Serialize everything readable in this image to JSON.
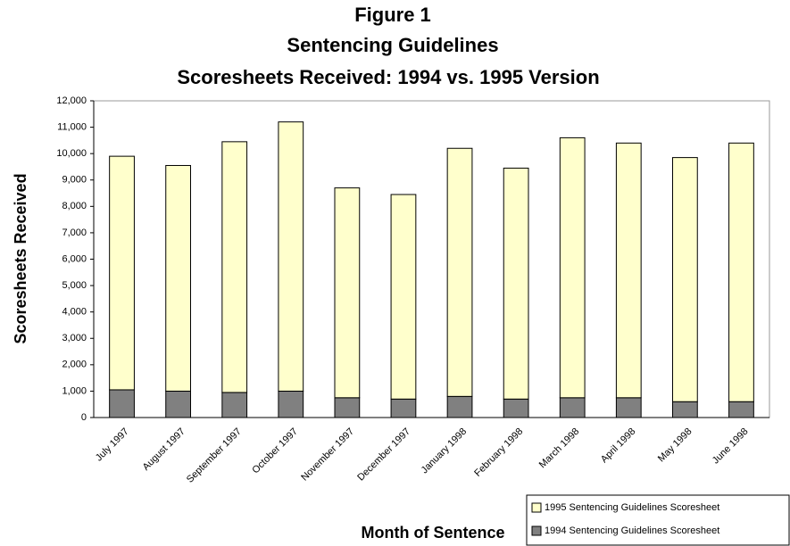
{
  "chart_data": {
    "type": "stacked_bar",
    "title": [
      "Figure 1",
      "Sentencing Guidelines",
      "Scoresheets Received: 1994 vs. 1995 Version"
    ],
    "x_label": "Month of Sentence",
    "y_label": "Scoresheets Received",
    "categories": [
      "July 1997",
      "August 1997",
      "September 1997",
      "October 1997",
      "November 1997",
      "December 1997",
      "January 1998",
      "February 1998",
      "March 1998",
      "April 1998",
      "May 1998",
      "June 1998"
    ],
    "series": [
      {
        "name": "1994 Sentencing Guidelines Scoresheet",
        "color": "#808080",
        "values": [
          1050,
          1000,
          950,
          1000,
          750,
          700,
          800,
          700,
          750,
          750,
          600,
          600
        ]
      },
      {
        "name": "1995 Sentencing Guidelines Scoresheet",
        "color": "#ffffcc",
        "values": [
          8850,
          8550,
          9500,
          10200,
          7950,
          7750,
          9400,
          8750,
          9850,
          9650,
          9250,
          9800
        ]
      }
    ],
    "ylim": [
      0,
      12000
    ],
    "yticks": [
      0,
      {
        "value": 1000,
        "label": "1,000"
      },
      {
        "value": 2000,
        "label": "2,000"
      },
      {
        "value": 3000,
        "label": "3,000"
      },
      {
        "value": 4000,
        "label": "4,000"
      },
      {
        "value": 5000,
        "label": "5,000"
      },
      {
        "value": 6000,
        "label": "6,000"
      },
      {
        "value": 7000,
        "label": "7,000"
      },
      {
        "value": 8000,
        "label": "8,000"
      },
      {
        "value": 9000,
        "label": "9,000"
      },
      {
        "value": 10000,
        "label": "10,000"
      },
      {
        "value": 11000,
        "label": "11,000"
      },
      {
        "value": 12000,
        "label": "12,000"
      }
    ],
    "grid": false,
    "legend": "bottom-right"
  }
}
